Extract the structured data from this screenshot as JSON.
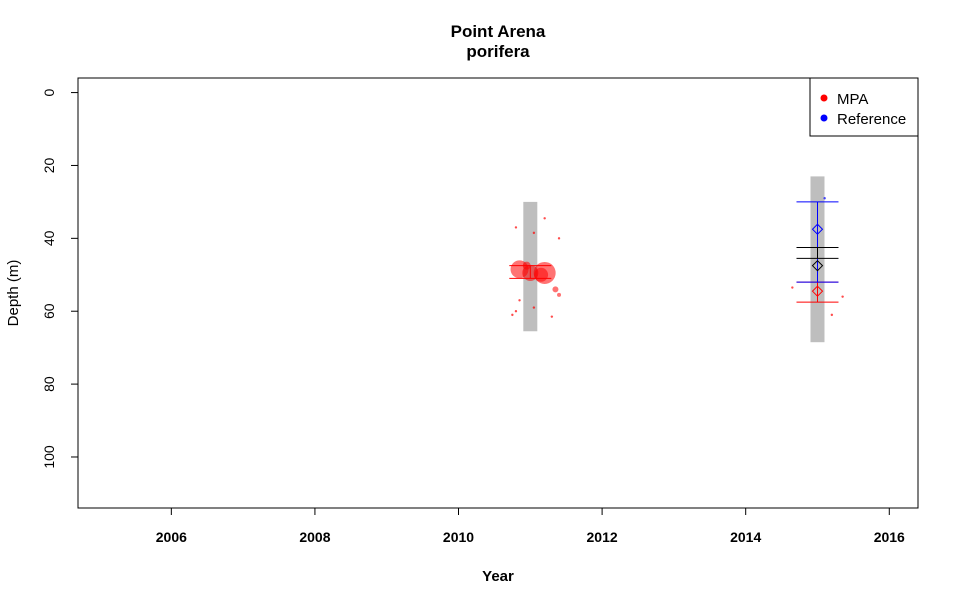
{
  "chart_data": {
    "type": "scatter",
    "title": "Point Arena",
    "subtitle": "porifera",
    "xlabel": "Year",
    "ylabel": "Depth (m)",
    "xlim": [
      2004.7,
      2016.4
    ],
    "ylim": [
      114,
      -4
    ],
    "y_reversed": true,
    "grid": false,
    "xticks": [
      2006,
      2008,
      2010,
      2012,
      2014,
      2016
    ],
    "yticks": [
      0,
      20,
      40,
      60,
      80,
      100
    ],
    "legend": {
      "position": "top-right",
      "entries": [
        {
          "label": "MPA",
          "color": "#ff0000"
        },
        {
          "label": "Reference",
          "color": "#0000ff"
        }
      ]
    },
    "colors": {
      "mpa": "#ff0000",
      "reference": "#0000ff",
      "range_bar": "#bebebe",
      "overall": "#000000"
    },
    "depth_ranges": [
      {
        "year": 2011.0,
        "min": 30,
        "max": 65.5
      },
      {
        "year": 2015.0,
        "min": 23,
        "max": 68.5
      }
    ],
    "mpa_points": [
      {
        "year": 2010.85,
        "depth": 48.5,
        "size": 9
      },
      {
        "year": 2011.0,
        "depth": 49.5,
        "size": 8
      },
      {
        "year": 2011.15,
        "depth": 50.0,
        "size": 7
      },
      {
        "year": 2011.2,
        "depth": 49.5,
        "size": 11
      },
      {
        "year": 2010.95,
        "depth": 47.5,
        "size": 4
      },
      {
        "year": 2011.35,
        "depth": 54.0,
        "size": 3
      },
      {
        "year": 2011.4,
        "depth": 55.5,
        "size": 2
      },
      {
        "year": 2010.8,
        "depth": 37.0,
        "size": 1
      },
      {
        "year": 2011.05,
        "depth": 38.5,
        "size": 1
      },
      {
        "year": 2011.2,
        "depth": 34.5,
        "size": 1
      },
      {
        "year": 2011.4,
        "depth": 40.0,
        "size": 1
      },
      {
        "year": 2010.85,
        "depth": 57.0,
        "size": 1
      },
      {
        "year": 2010.75,
        "depth": 61.0,
        "size": 1
      },
      {
        "year": 2010.8,
        "depth": 60.0,
        "size": 1
      },
      {
        "year": 2011.3,
        "depth": 61.5,
        "size": 1
      },
      {
        "year": 2011.05,
        "depth": 59.0,
        "size": 1
      },
      {
        "year": 2014.65,
        "depth": 53.5,
        "size": 1
      },
      {
        "year": 2015.35,
        "depth": 56.0,
        "size": 1
      },
      {
        "year": 2015.2,
        "depth": 61.0,
        "size": 1
      }
    ],
    "reference_points": [
      {
        "year": 2015.1,
        "depth": 29.0,
        "size": 1
      }
    ],
    "summaries": [
      {
        "group": "mpa",
        "year": 2011.0,
        "lower": 47.5,
        "upper": 51.0,
        "mean": null
      },
      {
        "group": "mpa",
        "year": 2015.0,
        "lower": 52.0,
        "upper": 57.5,
        "mean": 54.5
      },
      {
        "group": "reference",
        "year": 2015.0,
        "lower": 30.0,
        "upper": 52.0,
        "mean": 37.5
      },
      {
        "group": "overall",
        "year": 2015.0,
        "lower": 42.5,
        "upper": 45.5,
        "mean": 47.5
      }
    ]
  }
}
